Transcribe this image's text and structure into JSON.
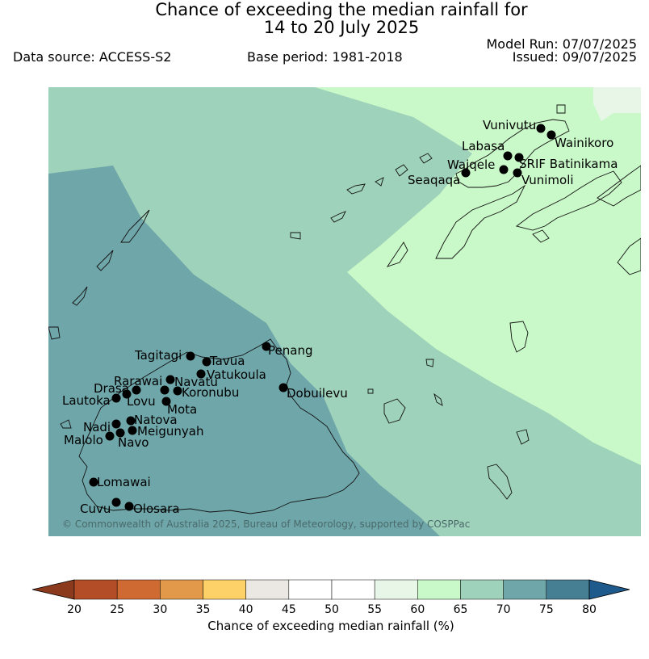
{
  "title_line1": "Chance of exceeding the median rainfall for",
  "title_line2": "14 to 20 July 2025",
  "model_run": "Model Run: 07/07/2025",
  "issued": "Issued: 09/07/2025",
  "data_source": "Data source: ACCESS-S2",
  "base_period": "Base period: 1981-2018",
  "copyright": "© Commonwealth of Australia 2025, Bureau of Meteorology, supported by COSPPac",
  "legend": {
    "label": "Chance of exceeding median rainfall (%)",
    "ticks": [
      "20",
      "25",
      "30",
      "35",
      "40",
      "45",
      "50",
      "55",
      "60",
      "65",
      "70",
      "75",
      "80"
    ],
    "colors": [
      "#8c3a1e",
      "#b34d27",
      "#d06a33",
      "#e3994a",
      "#fdd068",
      "#ebe8e3",
      "#ffffff",
      "#ffffff",
      "#e8f6e8",
      "#c9f9c8",
      "#9fd2ba",
      "#6fa6a9",
      "#467f93",
      "#1e5a8c"
    ]
  },
  "zones": [
    {
      "name": "55-60",
      "color": "#e8f6e8"
    },
    {
      "name": "60-65",
      "color": "#c9f9c8"
    },
    {
      "name": "65-70",
      "color": "#9fd2ba"
    },
    {
      "name": "70-75",
      "color": "#6fa6a9"
    }
  ],
  "stations": [
    {
      "name": "Vunivutu"
    },
    {
      "name": "Wainikoro"
    },
    {
      "name": "Labasa"
    },
    {
      "name": "SRIF Batinikama"
    },
    {
      "name": "Waiqele"
    },
    {
      "name": "Vunimoli"
    },
    {
      "name": "Seaqaqa"
    },
    {
      "name": "Penang"
    },
    {
      "name": "Tagitagi"
    },
    {
      "name": "Tavua"
    },
    {
      "name": "Vatukoula"
    },
    {
      "name": "Rarawai"
    },
    {
      "name": "Navatu"
    },
    {
      "name": "Drasa"
    },
    {
      "name": "Koronubu"
    },
    {
      "name": "Dobuilevu"
    },
    {
      "name": "Lautoka"
    },
    {
      "name": "Lovu"
    },
    {
      "name": "Mota"
    },
    {
      "name": "Natova"
    },
    {
      "name": "Nadi"
    },
    {
      "name": "Meigunyah"
    },
    {
      "name": "Malolo"
    },
    {
      "name": "Navo"
    },
    {
      "name": "Lomawai"
    },
    {
      "name": "Cuvu"
    },
    {
      "name": "Olosara"
    }
  ]
}
